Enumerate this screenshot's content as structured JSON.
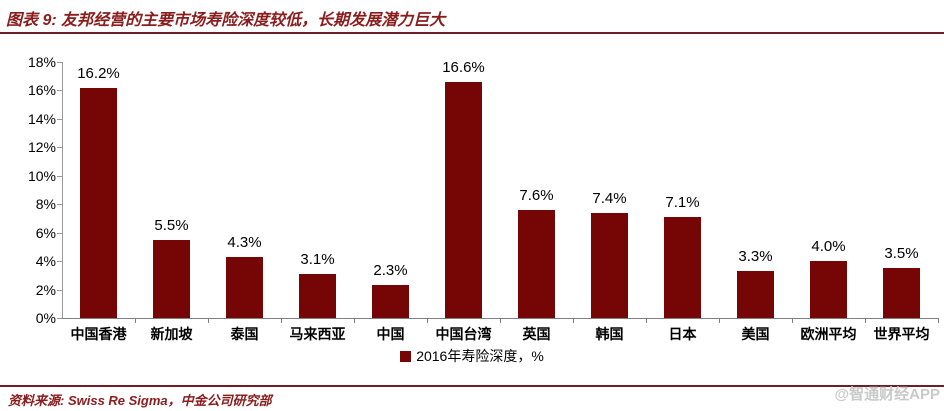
{
  "figure": {
    "title": "图表 9: 友邦经营的主要市场寿险深度较低，长期发展潜力巨大",
    "source": "资料来源: Swiss Re Sigma，中金公司研究部",
    "watermark": "@智通财经APP"
  },
  "colors": {
    "bar": "#760605",
    "accent": "#8B1C1C",
    "rule": "#6E1E28",
    "axis": "#999999",
    "watermark": "#c9c9c9"
  },
  "chart_data": {
    "type": "bar",
    "title": "图表 9: 友邦经营的主要市场寿险深度较低，长期发展潜力巨大",
    "categories": [
      "中国香港",
      "新加坡",
      "泰国",
      "马来西亚",
      "中国",
      "中国台湾",
      "英国",
      "韩国",
      "日本",
      "美国",
      "欧洲平均",
      "世界平均"
    ],
    "values": [
      16.2,
      5.5,
      4.3,
      3.1,
      2.3,
      16.6,
      7.6,
      7.4,
      7.1,
      3.3,
      4.0,
      3.5
    ],
    "value_labels": [
      "16.2%",
      "5.5%",
      "4.3%",
      "3.1%",
      "2.3%",
      "16.6%",
      "7.6%",
      "7.4%",
      "7.1%",
      "3.3%",
      "4.0%",
      "3.5%"
    ],
    "legend": [
      "2016年寿险深度，%"
    ],
    "legend_position": "bottom-center",
    "xlabel": "",
    "ylabel": "",
    "ylim": [
      0,
      18
    ],
    "ytick_step": 2,
    "ytick_labels": [
      "0%",
      "2%",
      "4%",
      "6%",
      "8%",
      "10%",
      "12%",
      "14%",
      "16%",
      "18%"
    ],
    "grid": false,
    "bar_color": "#760605"
  }
}
